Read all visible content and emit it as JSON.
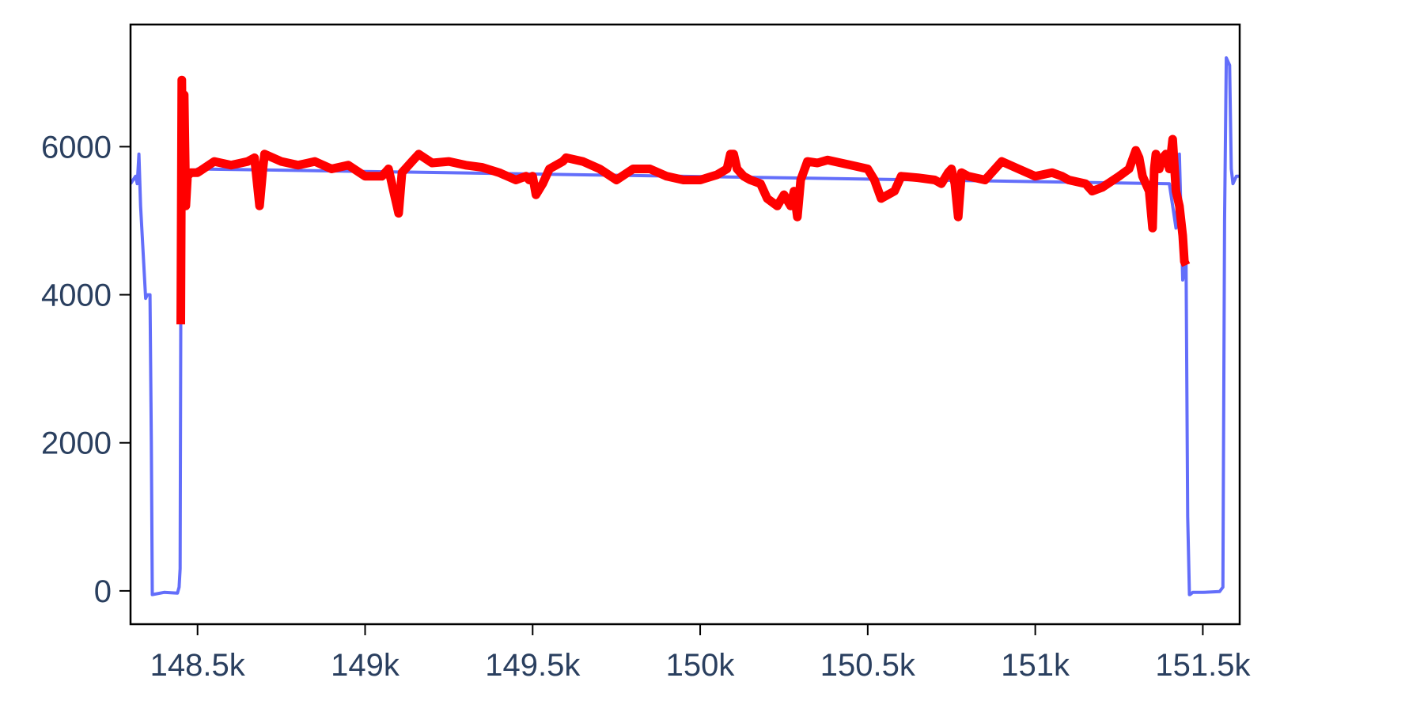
{
  "chart_data": {
    "type": "line",
    "title": "",
    "xlabel": "",
    "ylabel": "",
    "xlim": [
      148300,
      151610
    ],
    "ylim": [
      -450,
      7650
    ],
    "grid": false,
    "legend": "none",
    "x_ticks": [
      {
        "value": 148500,
        "label": "148.5k"
      },
      {
        "value": 149000,
        "label": "149k"
      },
      {
        "value": 149500,
        "label": "149.5k"
      },
      {
        "value": 150000,
        "label": "150k"
      },
      {
        "value": 150500,
        "label": "150.5k"
      },
      {
        "value": 151000,
        "label": "151k"
      },
      {
        "value": 151500,
        "label": "151.5k"
      }
    ],
    "y_ticks": [
      {
        "value": 0,
        "label": "0"
      },
      {
        "value": 2000,
        "label": "2000"
      },
      {
        "value": 4000,
        "label": "4000"
      },
      {
        "value": 6000,
        "label": "6000"
      }
    ],
    "series": [
      {
        "color": "#636efa",
        "width": 4,
        "x": [
          148300,
          148315,
          148320,
          148325,
          148330,
          148345,
          148350,
          148358,
          148362,
          148365,
          148400,
          148440,
          148445,
          148448,
          148450,
          148452,
          148460,
          148470,
          148500,
          151400,
          151420,
          151430,
          151440,
          151445,
          151450,
          151452,
          151455,
          151460,
          151462,
          151470,
          151500,
          151550,
          151560,
          151565,
          151570,
          151575,
          151580,
          151585,
          151590,
          151600,
          151610
        ],
        "y": [
          5500,
          5600,
          5500,
          5900,
          5200,
          3950,
          4000,
          4000,
          2000,
          -50,
          -20,
          -30,
          50,
          300,
          3600,
          6400,
          5800,
          5600,
          5700,
          5500,
          4900,
          5900,
          4200,
          4300,
          4500,
          3000,
          1000,
          -50,
          -50,
          -20,
          -20,
          -10,
          50,
          5000,
          7200,
          7150,
          7100,
          5700,
          5500,
          5600,
          5600
        ]
      },
      {
        "color": "#ff0000",
        "width": 11,
        "x": [
          148450,
          148453,
          148456,
          148460,
          148465,
          148470,
          148480,
          148500,
          148550,
          148600,
          148650,
          148670,
          148685,
          148695,
          148700,
          148750,
          148800,
          148850,
          148900,
          148950,
          149000,
          149050,
          149070,
          149090,
          149100,
          149110,
          149120,
          149140,
          149160,
          149200,
          149250,
          149300,
          149350,
          149400,
          149450,
          149480,
          149490,
          149500,
          149510,
          149530,
          149550,
          149570,
          149590,
          149600,
          149650,
          149700,
          149750,
          149800,
          149850,
          149900,
          149950,
          150000,
          150050,
          150080,
          150090,
          150100,
          150110,
          150130,
          150150,
          150180,
          150200,
          150230,
          150250,
          150270,
          150280,
          150290,
          150300,
          150320,
          150350,
          150380,
          150400,
          150450,
          150500,
          150520,
          150540,
          150560,
          150580,
          150600,
          150650,
          150700,
          150720,
          150740,
          150750,
          150760,
          150770,
          150780,
          150800,
          150850,
          150870,
          150900,
          150950,
          151000,
          151050,
          151080,
          151100,
          151150,
          151170,
          151200,
          151250,
          151280,
          151300,
          151310,
          151320,
          151340,
          151350,
          151355,
          151360,
          151370,
          151380,
          151390,
          151400,
          151410,
          151420,
          151430,
          151440,
          151445,
          151450
        ],
        "y": [
          3600,
          6900,
          5200,
          6700,
          5200,
          5600,
          5650,
          5650,
          5800,
          5750,
          5800,
          5850,
          5200,
          5700,
          5900,
          5800,
          5750,
          5800,
          5700,
          5750,
          5600,
          5600,
          5700,
          5300,
          5100,
          5650,
          5700,
          5800,
          5900,
          5780,
          5800,
          5750,
          5720,
          5650,
          5550,
          5600,
          5550,
          5600,
          5350,
          5500,
          5700,
          5750,
          5800,
          5850,
          5800,
          5700,
          5550,
          5700,
          5700,
          5600,
          5550,
          5550,
          5620,
          5700,
          5900,
          5900,
          5700,
          5600,
          5550,
          5500,
          5300,
          5200,
          5350,
          5200,
          5400,
          5050,
          5550,
          5800,
          5780,
          5820,
          5800,
          5750,
          5700,
          5550,
          5300,
          5350,
          5400,
          5600,
          5580,
          5550,
          5500,
          5650,
          5700,
          5500,
          5050,
          5650,
          5600,
          5550,
          5650,
          5800,
          5700,
          5600,
          5650,
          5600,
          5550,
          5500,
          5400,
          5450,
          5600,
          5700,
          5950,
          5850,
          5600,
          5400,
          4900,
          5700,
          5900,
          5700,
          5850,
          5900,
          5700,
          6100,
          5400,
          5200,
          4800,
          4450,
          4400
        ]
      }
    ]
  }
}
